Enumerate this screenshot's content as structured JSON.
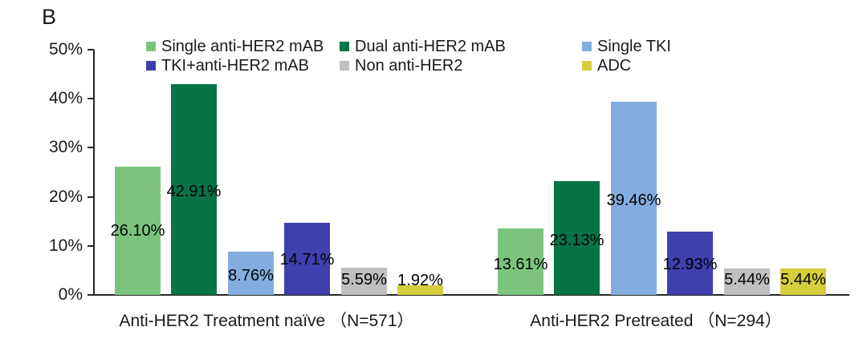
{
  "panel_label": "B",
  "chart_data": {
    "type": "bar",
    "title": "",
    "xlabel": "",
    "ylabel": "",
    "ylim": [
      0,
      50
    ],
    "y_ticks": [
      "0%",
      "10%",
      "20%",
      "30%",
      "40%",
      "50%"
    ],
    "grid": false,
    "legend_position": "top",
    "categories": [
      "Anti-HER2 Treatment naïve （N=571）",
      "Anti-HER2 Pretreated （N=294）"
    ],
    "series": [
      {
        "name": "Single anti-HER2 mAB",
        "color": "#7cc47d",
        "values": [
          26.1,
          13.61
        ]
      },
      {
        "name": "Dual anti-HER2 mAB",
        "color": "#077347",
        "values": [
          42.91,
          23.13
        ]
      },
      {
        "name": "Single TKI",
        "color": "#83adde",
        "values": [
          8.76,
          39.46
        ]
      },
      {
        "name": "TKI+anti-HER2 mAB",
        "color": "#3f3fae",
        "values": [
          14.71,
          12.93
        ]
      },
      {
        "name": "Non anti-HER2",
        "color": "#bfbfbf",
        "values": [
          5.59,
          5.44
        ]
      },
      {
        "name": "ADC",
        "color": "#d5cd3c",
        "values": [
          1.92,
          5.44
        ]
      }
    ],
    "data_labels": [
      [
        "26.10%",
        "42.91%",
        "8.76%",
        "14.71%",
        "5.59%",
        "1.92%"
      ],
      [
        "13.61%",
        "23.13%",
        "39.46%",
        "12.93%",
        "5.44%",
        "5.44%"
      ]
    ],
    "axis_color": "#262626",
    "text_color": "#1a1a1a"
  }
}
